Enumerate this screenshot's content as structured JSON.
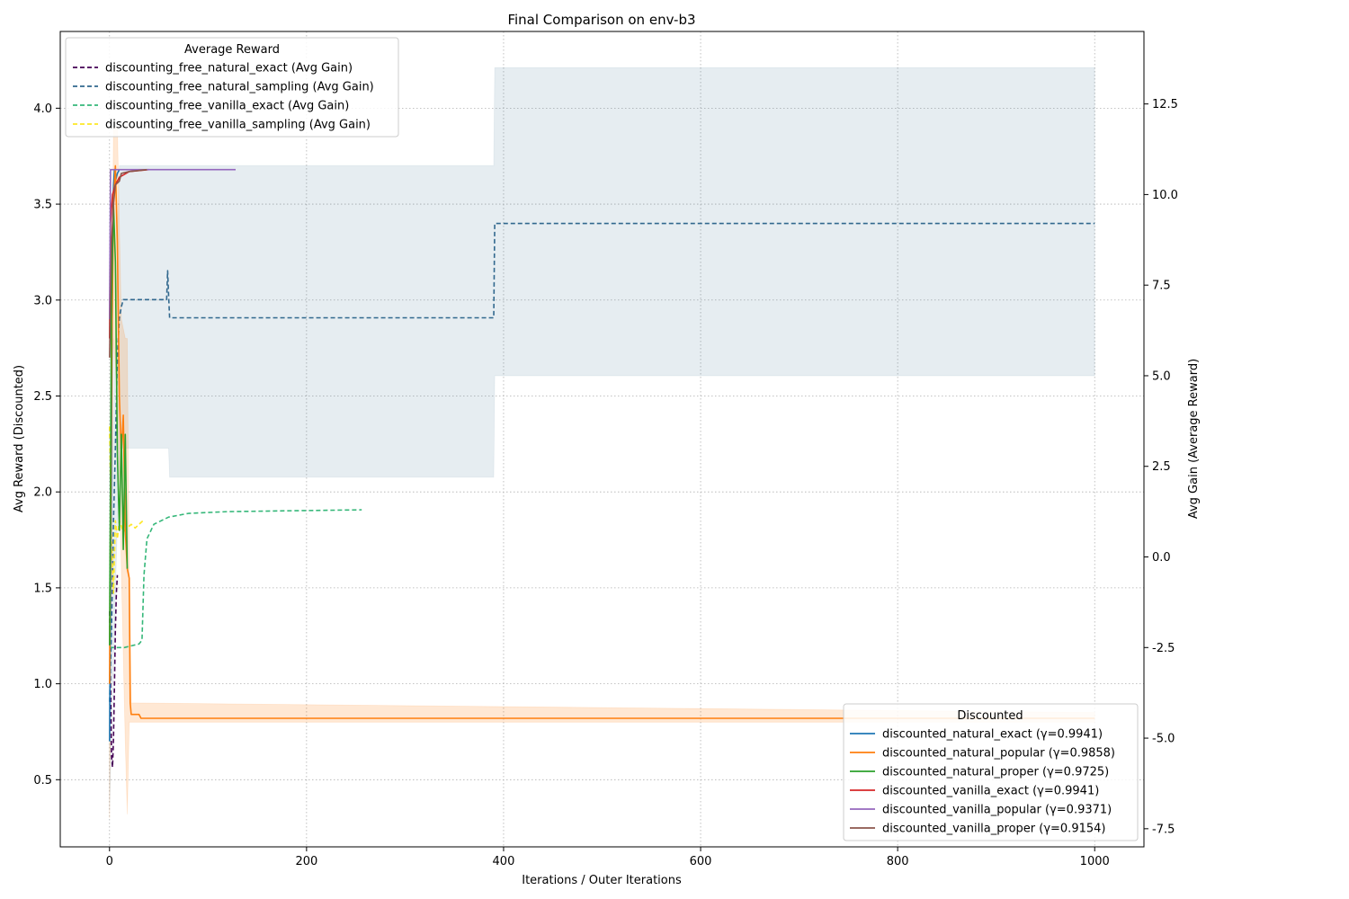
{
  "chart_data": {
    "type": "line",
    "title": "Final Comparison on env-b3",
    "xlabel": "Iterations / Outer Iterations",
    "ylabel_left": "Avg Reward (Discounted)",
    "ylabel_right": "Avg Gain (Average Reward)",
    "xlim": [
      -50,
      1050
    ],
    "ylim_left": [
      0.15,
      4.4
    ],
    "ylim_right": [
      -8.0,
      14.5
    ],
    "x_ticks": [
      0,
      200,
      400,
      600,
      800,
      1000
    ],
    "y_ticks_left": [
      0.5,
      1.0,
      1.5,
      2.0,
      2.5,
      3.0,
      3.5,
      4.0
    ],
    "y_ticks_right": [
      -7.5,
      -5.0,
      -2.5,
      0.0,
      2.5,
      5.0,
      7.5,
      10.0,
      12.5
    ],
    "grid": true,
    "legend_avg": {
      "title": "Average Reward",
      "placement": "top-left",
      "entries": [
        {
          "label": "discounting_free_natural_exact (Avg Gain)",
          "color": "#440154",
          "dash": "dashed"
        },
        {
          "label": "discounting_free_natural_sampling (Avg Gain)",
          "color": "#31688e",
          "dash": "dashed"
        },
        {
          "label": "discounting_free_vanilla_exact (Avg Gain)",
          "color": "#35b779",
          "dash": "dashed"
        },
        {
          "label": "discounting_free_vanilla_sampling (Avg Gain)",
          "color": "#fde725",
          "dash": "dashed"
        }
      ]
    },
    "legend_disc": {
      "title": "Discounted",
      "placement": "bottom-right",
      "entries": [
        {
          "label": "discounted_natural_exact (γ=0.9941)",
          "color": "#1f77b4",
          "dash": "solid"
        },
        {
          "label": "discounted_natural_popular (γ=0.9858)",
          "color": "#ff7f0e",
          "dash": "solid"
        },
        {
          "label": "discounted_natural_proper (γ=0.9725)",
          "color": "#2ca02c",
          "dash": "solid"
        },
        {
          "label": "discounted_vanilla_exact (γ=0.9941)",
          "color": "#d62728",
          "dash": "solid"
        },
        {
          "label": "discounted_vanilla_popular (γ=0.9371)",
          "color": "#9467bd",
          "dash": "solid"
        },
        {
          "label": "discounted_vanilla_proper (γ=0.9154)",
          "color": "#8c564b",
          "dash": "solid"
        }
      ]
    },
    "series_right": [
      {
        "name": "discounting_free_natural_exact (Avg Gain)",
        "color": "#440154",
        "points": [
          [
            0,
            -1.5
          ],
          [
            1,
            -3.5
          ],
          [
            2,
            -5.5
          ],
          [
            3,
            -5.8
          ],
          [
            4,
            -5.0
          ],
          [
            5,
            -3.5
          ],
          [
            6,
            -2.0
          ],
          [
            7,
            -1.0
          ],
          [
            8,
            -0.5
          ]
        ]
      },
      {
        "name": "discounting_free_natural_sampling (Avg Gain)",
        "color": "#31688e",
        "points": [
          [
            0,
            -4.0
          ],
          [
            2,
            -2.0
          ],
          [
            4,
            1.0
          ],
          [
            6,
            3.0
          ],
          [
            8,
            5.5
          ],
          [
            10,
            6.6
          ],
          [
            12,
            6.9
          ],
          [
            14,
            7.1
          ],
          [
            58,
            7.1
          ],
          [
            59,
            7.9
          ],
          [
            60,
            7.2
          ],
          [
            61,
            6.6
          ],
          [
            390,
            6.6
          ],
          [
            391,
            9.2
          ],
          [
            1000,
            9.2
          ]
        ],
        "band": [
          [
            0,
            -7.0,
            -1.0
          ],
          [
            10,
            3.0,
            10.8
          ],
          [
            60,
            3.0,
            10.8
          ],
          [
            61,
            2.2,
            10.8
          ],
          [
            390,
            2.2,
            10.8
          ],
          [
            391,
            5.0,
            13.5
          ],
          [
            1000,
            5.0,
            13.5
          ]
        ]
      },
      {
        "name": "discounting_free_vanilla_exact (Avg Gain)",
        "color": "#35b779",
        "points": [
          [
            0,
            -2.5
          ],
          [
            5,
            -2.5
          ],
          [
            15,
            -2.5
          ],
          [
            30,
            -2.4
          ],
          [
            33,
            -2.3
          ],
          [
            35,
            -0.5
          ],
          [
            38,
            0.5
          ],
          [
            45,
            0.9
          ],
          [
            60,
            1.1
          ],
          [
            80,
            1.2
          ],
          [
            120,
            1.25
          ],
          [
            200,
            1.28
          ],
          [
            256,
            1.3
          ]
        ]
      },
      {
        "name": "discounting_free_vanilla_sampling (Avg Gain)",
        "color": "#fde725",
        "points": [
          [
            0,
            3.6
          ],
          [
            2,
            0.5
          ],
          [
            4,
            -1.0
          ],
          [
            6,
            1.0
          ],
          [
            8,
            0.5
          ],
          [
            10,
            1.0
          ],
          [
            14,
            0.7
          ],
          [
            18,
            0.8
          ],
          [
            22,
            0.9
          ],
          [
            26,
            0.8
          ],
          [
            30,
            0.9
          ],
          [
            34,
            1.0
          ]
        ]
      }
    ],
    "series_left": [
      {
        "name": "discounted_natural_exact (γ=0.9941)",
        "color": "#1f77b4",
        "points": [
          [
            0,
            0.7
          ],
          [
            2,
            2.2
          ],
          [
            3,
            3.3
          ],
          [
            4,
            3.6
          ],
          [
            5,
            3.68
          ],
          [
            6,
            3.62
          ],
          [
            8,
            3.66
          ],
          [
            10,
            3.68
          ]
        ]
      },
      {
        "name": "discounted_natural_popular (γ=0.9858)",
        "color": "#ff7f0e",
        "points": [
          [
            0,
            1.0
          ],
          [
            2,
            2.6
          ],
          [
            4,
            3.5
          ],
          [
            6,
            3.7
          ],
          [
            8,
            3.3
          ],
          [
            10,
            2.5
          ],
          [
            12,
            2.2
          ],
          [
            14,
            2.4
          ],
          [
            16,
            1.8
          ],
          [
            18,
            1.6
          ],
          [
            20,
            1.55
          ],
          [
            21,
            0.9
          ],
          [
            22,
            0.84
          ],
          [
            30,
            0.84
          ],
          [
            32,
            0.82
          ],
          [
            1000,
            0.82
          ]
        ],
        "band": [
          [
            0,
            0.3,
            1.5
          ],
          [
            4,
            2.8,
            3.9
          ],
          [
            8,
            2.5,
            3.9
          ],
          [
            12,
            1.6,
            2.9
          ],
          [
            16,
            0.7,
            2.8
          ],
          [
            18,
            0.32,
            2.8
          ],
          [
            20,
            0.8,
            1.6
          ],
          [
            22,
            0.8,
            0.9
          ],
          [
            1000,
            0.8,
            0.85
          ]
        ]
      },
      {
        "name": "discounted_natural_proper (γ=0.9725)",
        "color": "#2ca02c",
        "points": [
          [
            0,
            1.2
          ],
          [
            2,
            3.0
          ],
          [
            4,
            3.5
          ],
          [
            6,
            3.2
          ],
          [
            8,
            2.2
          ],
          [
            10,
            1.8
          ],
          [
            12,
            2.3
          ],
          [
            14,
            1.7
          ],
          [
            16,
            2.3
          ],
          [
            18,
            1.6
          ]
        ]
      },
      {
        "name": "discounted_vanilla_exact (γ=0.9941)",
        "color": "#d62728",
        "points": [
          [
            0,
            2.8
          ],
          [
            1,
            3.4
          ],
          [
            3,
            3.55
          ],
          [
            6,
            3.6
          ],
          [
            10,
            3.64
          ],
          [
            20,
            3.67
          ],
          [
            40,
            3.68
          ]
        ]
      },
      {
        "name": "discounted_vanilla_popular (γ=0.9371)",
        "color": "#9467bd",
        "points": [
          [
            0,
            2.9
          ],
          [
            1,
            3.68
          ],
          [
            20,
            3.68
          ],
          [
            60,
            3.68
          ],
          [
            128,
            3.68
          ]
        ]
      },
      {
        "name": "discounted_vanilla_proper (γ=0.9154)",
        "color": "#8c564b",
        "points": [
          [
            0,
            2.7
          ],
          [
            2,
            3.3
          ],
          [
            4,
            3.5
          ],
          [
            6,
            3.6
          ],
          [
            10,
            3.62
          ],
          [
            12,
            3.66
          ],
          [
            20,
            3.67
          ],
          [
            38,
            3.68
          ]
        ]
      }
    ]
  }
}
